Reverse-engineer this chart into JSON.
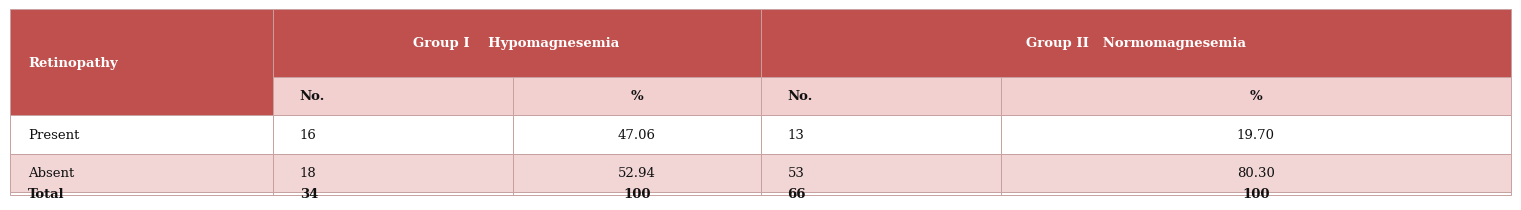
{
  "header1_text": "Retinopathy",
  "header2_group1": "Group I    Hypomagnesemia",
  "header2_group2": "Group II   Normomagnesemia",
  "rows": [
    {
      "label": "Present",
      "values": [
        "16",
        "47.06",
        "13",
        "19.70"
      ],
      "bold": false,
      "bg": "#ffffff"
    },
    {
      "label": "Absent",
      "values": [
        "18",
        "52.94",
        "53",
        "80.30"
      ],
      "bold": false,
      "bg": "#f2d5d5"
    },
    {
      "label": "Total",
      "values": [
        "34",
        "100",
        "66",
        "100"
      ],
      "bold": true,
      "bg": "#ffffff"
    }
  ],
  "color_header": "#c0504d",
  "color_subheader": "#f2d0d0",
  "color_row_alt": "#f2d5d5",
  "color_white": "#ffffff",
  "color_header_text": "#ffffff",
  "color_data_text": "#111111",
  "fig_width": 15.01,
  "fig_height": 1.86,
  "c0": 0.0,
  "c1": 0.175,
  "c2": 0.335,
  "c3": 0.5,
  "c4": 0.66,
  "c5": 0.83,
  "c6": 1.0
}
